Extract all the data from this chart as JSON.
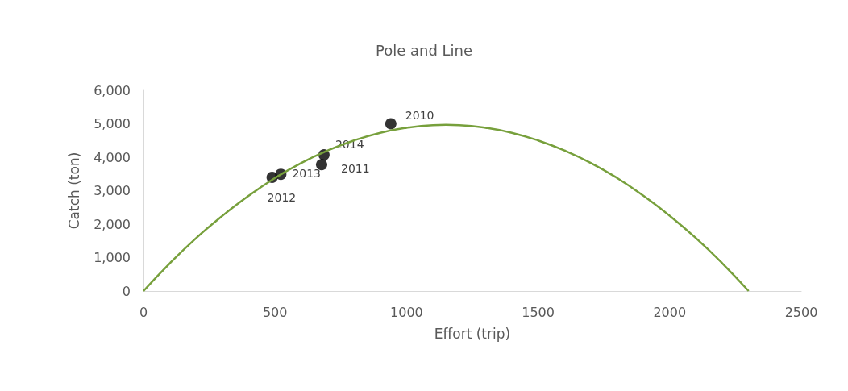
{
  "chart_data": {
    "type": "scatter",
    "title": "Pole and Line",
    "xlabel": "Effort (trip)",
    "ylabel": "Catch (ton)",
    "xlim": [
      0,
      2500
    ],
    "xticks": [
      0,
      500,
      1000,
      1500,
      2000,
      2500
    ],
    "ylim": [
      0,
      6000
    ],
    "yticks": [
      {
        "value": 0,
        "label": "0"
      },
      {
        "value": 1000,
        "label": "1,000"
      },
      {
        "value": 2000,
        "label": "2,000"
      },
      {
        "value": 3000,
        "label": "3,000"
      },
      {
        "value": 4000,
        "label": "4,000"
      },
      {
        "value": 5000,
        "label": "5,000"
      },
      {
        "value": 6000,
        "label": "6,000"
      }
    ],
    "grid": false,
    "annotations": [
      {
        "text": "2010",
        "x": 940,
        "y": 5000
      },
      {
        "text": "2011",
        "x": 677,
        "y": 3780
      },
      {
        "text": "2012",
        "x": 489,
        "y": 3400
      },
      {
        "text": "2013",
        "x": 522,
        "y": 3490
      },
      {
        "text": "2014",
        "x": 686,
        "y": 4070
      }
    ],
    "series": [
      {
        "type": "line",
        "color": "#77a03c",
        "marker": "none",
        "x": [
          0,
          100,
          200,
          300,
          400,
          500,
          600,
          700,
          800,
          900,
          1000,
          1100,
          1150,
          1200,
          1300,
          1400,
          1500,
          1600,
          1700,
          1800,
          1900,
          2000,
          2100,
          2200,
          2300
        ],
        "values": [
          0,
          830,
          1580,
          2250,
          2850,
          3380,
          3830,
          4200,
          4500,
          4730,
          4880,
          4960,
          4970,
          4960,
          4880,
          4730,
          4500,
          4200,
          3830,
          3380,
          2850,
          2250,
          1580,
          830,
          0
        ]
      },
      {
        "color": "#000000",
        "marker": "circle",
        "x": [
          940,
          677,
          489,
          522,
          686
        ],
        "values": [
          5000,
          3780,
          3400,
          3490,
          4070
        ]
      }
    ]
  }
}
